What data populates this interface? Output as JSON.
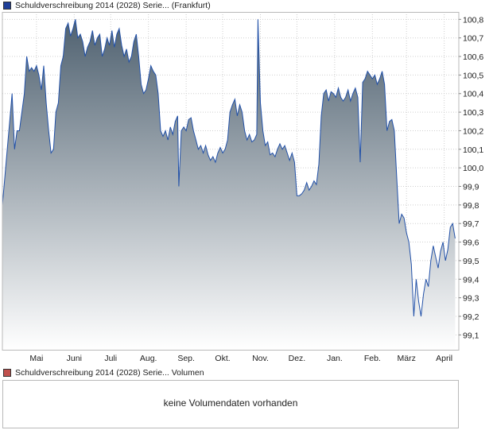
{
  "price_legend": {
    "label": "Schuldverschreibung 2014 (2028) Serie... (Frankfurt)",
    "color": "#1f3f99"
  },
  "volume_legend": {
    "label": "Schuldverschreibung 2014 (2028) Serie... Volumen",
    "color": "#c0504d"
  },
  "volume_panel": {
    "message": "keine Volumendaten vorhanden"
  },
  "colors": {
    "line": "#2251a8",
    "fill_top": "#4f6170",
    "fill_bottom": "#ffffff",
    "grid": "#cfcfcf",
    "frame": "#b9b9b9"
  },
  "chart_data": {
    "type": "area",
    "title": "",
    "xlabel": "",
    "ylabel": "",
    "ylim": [
      99.02,
      100.84
    ],
    "xlim": [
      0,
      375
    ],
    "grid": true,
    "y_axis_position": "right",
    "y_ticks": [
      {
        "value": 100.8,
        "label": "100,8"
      },
      {
        "value": 100.7,
        "label": "100,7"
      },
      {
        "value": 100.6,
        "label": "100,6"
      },
      {
        "value": 100.5,
        "label": "100,5"
      },
      {
        "value": 100.4,
        "label": "100,4"
      },
      {
        "value": 100.3,
        "label": "100,3"
      },
      {
        "value": 100.2,
        "label": "100,2"
      },
      {
        "value": 100.1,
        "label": "100,1"
      },
      {
        "value": 100.0,
        "label": "100,0"
      },
      {
        "value": 99.9,
        "label": "99,9"
      },
      {
        "value": 99.8,
        "label": "99,8"
      },
      {
        "value": 99.7,
        "label": "99,7"
      },
      {
        "value": 99.6,
        "label": "99,6"
      },
      {
        "value": 99.5,
        "label": "99,5"
      },
      {
        "value": 99.4,
        "label": "99,4"
      },
      {
        "value": 99.3,
        "label": "99,3"
      },
      {
        "value": 99.2,
        "label": "99,2"
      },
      {
        "value": 99.1,
        "label": "99,1"
      }
    ],
    "x_ticks": [
      {
        "x": 28,
        "label": "Mai"
      },
      {
        "x": 59,
        "label": "Juni"
      },
      {
        "x": 89,
        "label": "Juli"
      },
      {
        "x": 120,
        "label": "Aug."
      },
      {
        "x": 151,
        "label": "Sep."
      },
      {
        "x": 181,
        "label": "Okt."
      },
      {
        "x": 212,
        "label": "Nov."
      },
      {
        "x": 242,
        "label": "Dez."
      },
      {
        "x": 273,
        "label": "Jan."
      },
      {
        "x": 304,
        "label": "Feb."
      },
      {
        "x": 332,
        "label": "März"
      },
      {
        "x": 363,
        "label": "April"
      }
    ],
    "series": [
      {
        "values": [
          [
            0,
            99.8
          ],
          [
            2,
            99.95
          ],
          [
            4,
            100.1
          ],
          [
            6,
            100.25
          ],
          [
            8,
            100.4
          ],
          [
            10,
            100.1
          ],
          [
            12,
            100.2
          ],
          [
            14,
            100.2
          ],
          [
            16,
            100.3
          ],
          [
            18,
            100.4
          ],
          [
            20,
            100.6
          ],
          [
            22,
            100.52
          ],
          [
            24,
            100.54
          ],
          [
            26,
            100.52
          ],
          [
            28,
            100.55
          ],
          [
            30,
            100.5
          ],
          [
            32,
            100.42
          ],
          [
            34,
            100.55
          ],
          [
            36,
            100.35
          ],
          [
            38,
            100.2
          ],
          [
            40,
            100.08
          ],
          [
            42,
            100.1
          ],
          [
            44,
            100.3
          ],
          [
            46,
            100.35
          ],
          [
            48,
            100.55
          ],
          [
            50,
            100.6
          ],
          [
            52,
            100.75
          ],
          [
            54,
            100.78
          ],
          [
            56,
            100.71
          ],
          [
            58,
            100.75
          ],
          [
            60,
            100.8
          ],
          [
            62,
            100.7
          ],
          [
            64,
            100.72
          ],
          [
            66,
            100.68
          ],
          [
            68,
            100.6
          ],
          [
            70,
            100.65
          ],
          [
            72,
            100.68
          ],
          [
            74,
            100.74
          ],
          [
            76,
            100.66
          ],
          [
            78,
            100.7
          ],
          [
            80,
            100.72
          ],
          [
            82,
            100.6
          ],
          [
            84,
            100.64
          ],
          [
            86,
            100.7
          ],
          [
            88,
            100.66
          ],
          [
            90,
            100.74
          ],
          [
            92,
            100.65
          ],
          [
            94,
            100.72
          ],
          [
            96,
            100.75
          ],
          [
            98,
            100.66
          ],
          [
            100,
            100.6
          ],
          [
            102,
            100.64
          ],
          [
            104,
            100.57
          ],
          [
            106,
            100.6
          ],
          [
            108,
            100.68
          ],
          [
            110,
            100.72
          ],
          [
            112,
            100.6
          ],
          [
            114,
            100.45
          ],
          [
            116,
            100.4
          ],
          [
            118,
            100.42
          ],
          [
            120,
            100.48
          ],
          [
            122,
            100.55
          ],
          [
            124,
            100.52
          ],
          [
            126,
            100.5
          ],
          [
            128,
            100.4
          ],
          [
            130,
            100.2
          ],
          [
            132,
            100.17
          ],
          [
            134,
            100.2
          ],
          [
            136,
            100.15
          ],
          [
            138,
            100.22
          ],
          [
            140,
            100.18
          ],
          [
            142,
            100.25
          ],
          [
            144,
            100.28
          ],
          [
            145,
            99.9
          ],
          [
            147,
            100.2
          ],
          [
            149,
            100.22
          ],
          [
            151,
            100.2
          ],
          [
            153,
            100.26
          ],
          [
            155,
            100.27
          ],
          [
            157,
            100.2
          ],
          [
            159,
            100.15
          ],
          [
            161,
            100.1
          ],
          [
            163,
            100.12
          ],
          [
            165,
            100.08
          ],
          [
            167,
            100.12
          ],
          [
            169,
            100.07
          ],
          [
            171,
            100.04
          ],
          [
            173,
            100.06
          ],
          [
            175,
            100.03
          ],
          [
            177,
            100.08
          ],
          [
            179,
            100.11
          ],
          [
            181,
            100.08
          ],
          [
            183,
            100.1
          ],
          [
            185,
            100.15
          ],
          [
            187,
            100.3
          ],
          [
            189,
            100.34
          ],
          [
            191,
            100.37
          ],
          [
            193,
            100.28
          ],
          [
            195,
            100.34
          ],
          [
            197,
            100.3
          ],
          [
            199,
            100.2
          ],
          [
            201,
            100.15
          ],
          [
            203,
            100.18
          ],
          [
            205,
            100.14
          ],
          [
            207,
            100.15
          ],
          [
            209,
            100.18
          ],
          [
            210,
            100.8
          ],
          [
            212,
            100.35
          ],
          [
            214,
            100.2
          ],
          [
            216,
            100.12
          ],
          [
            218,
            100.14
          ],
          [
            220,
            100.07
          ],
          [
            222,
            100.08
          ],
          [
            224,
            100.06
          ],
          [
            226,
            100.1
          ],
          [
            228,
            100.13
          ],
          [
            230,
            100.1
          ],
          [
            232,
            100.12
          ],
          [
            234,
            100.08
          ],
          [
            236,
            100.04
          ],
          [
            238,
            100.08
          ],
          [
            240,
            100.03
          ],
          [
            242,
            99.85
          ],
          [
            244,
            99.85
          ],
          [
            246,
            99.86
          ],
          [
            248,
            99.88
          ],
          [
            250,
            99.92
          ],
          [
            252,
            99.88
          ],
          [
            254,
            99.9
          ],
          [
            256,
            99.93
          ],
          [
            258,
            99.91
          ],
          [
            260,
            100.02
          ],
          [
            262,
            100.28
          ],
          [
            264,
            100.4
          ],
          [
            266,
            100.42
          ],
          [
            268,
            100.36
          ],
          [
            270,
            100.41
          ],
          [
            272,
            100.4
          ],
          [
            274,
            100.38
          ],
          [
            276,
            100.43
          ],
          [
            278,
            100.38
          ],
          [
            280,
            100.36
          ],
          [
            282,
            100.38
          ],
          [
            284,
            100.42
          ],
          [
            286,
            100.36
          ],
          [
            288,
            100.4
          ],
          [
            290,
            100.43
          ],
          [
            292,
            100.38
          ],
          [
            294,
            100.03
          ],
          [
            296,
            100.46
          ],
          [
            298,
            100.48
          ],
          [
            300,
            100.52
          ],
          [
            302,
            100.5
          ],
          [
            304,
            100.48
          ],
          [
            306,
            100.5
          ],
          [
            308,
            100.45
          ],
          [
            310,
            100.48
          ],
          [
            312,
            100.52
          ],
          [
            314,
            100.45
          ],
          [
            316,
            100.2
          ],
          [
            318,
            100.25
          ],
          [
            320,
            100.26
          ],
          [
            322,
            100.2
          ],
          [
            324,
            99.95
          ],
          [
            326,
            99.7
          ],
          [
            328,
            99.75
          ],
          [
            330,
            99.73
          ],
          [
            332,
            99.65
          ],
          [
            334,
            99.6
          ],
          [
            336,
            99.48
          ],
          [
            338,
            99.2
          ],
          [
            340,
            99.4
          ],
          [
            342,
            99.28
          ],
          [
            344,
            99.2
          ],
          [
            346,
            99.32
          ],
          [
            348,
            99.4
          ],
          [
            350,
            99.36
          ],
          [
            352,
            99.5
          ],
          [
            354,
            99.58
          ],
          [
            356,
            99.52
          ],
          [
            358,
            99.46
          ],
          [
            360,
            99.55
          ],
          [
            362,
            99.6
          ],
          [
            364,
            99.5
          ],
          [
            366,
            99.56
          ],
          [
            368,
            99.68
          ],
          [
            370,
            99.7
          ],
          [
            372,
            99.62
          ]
        ]
      }
    ]
  }
}
